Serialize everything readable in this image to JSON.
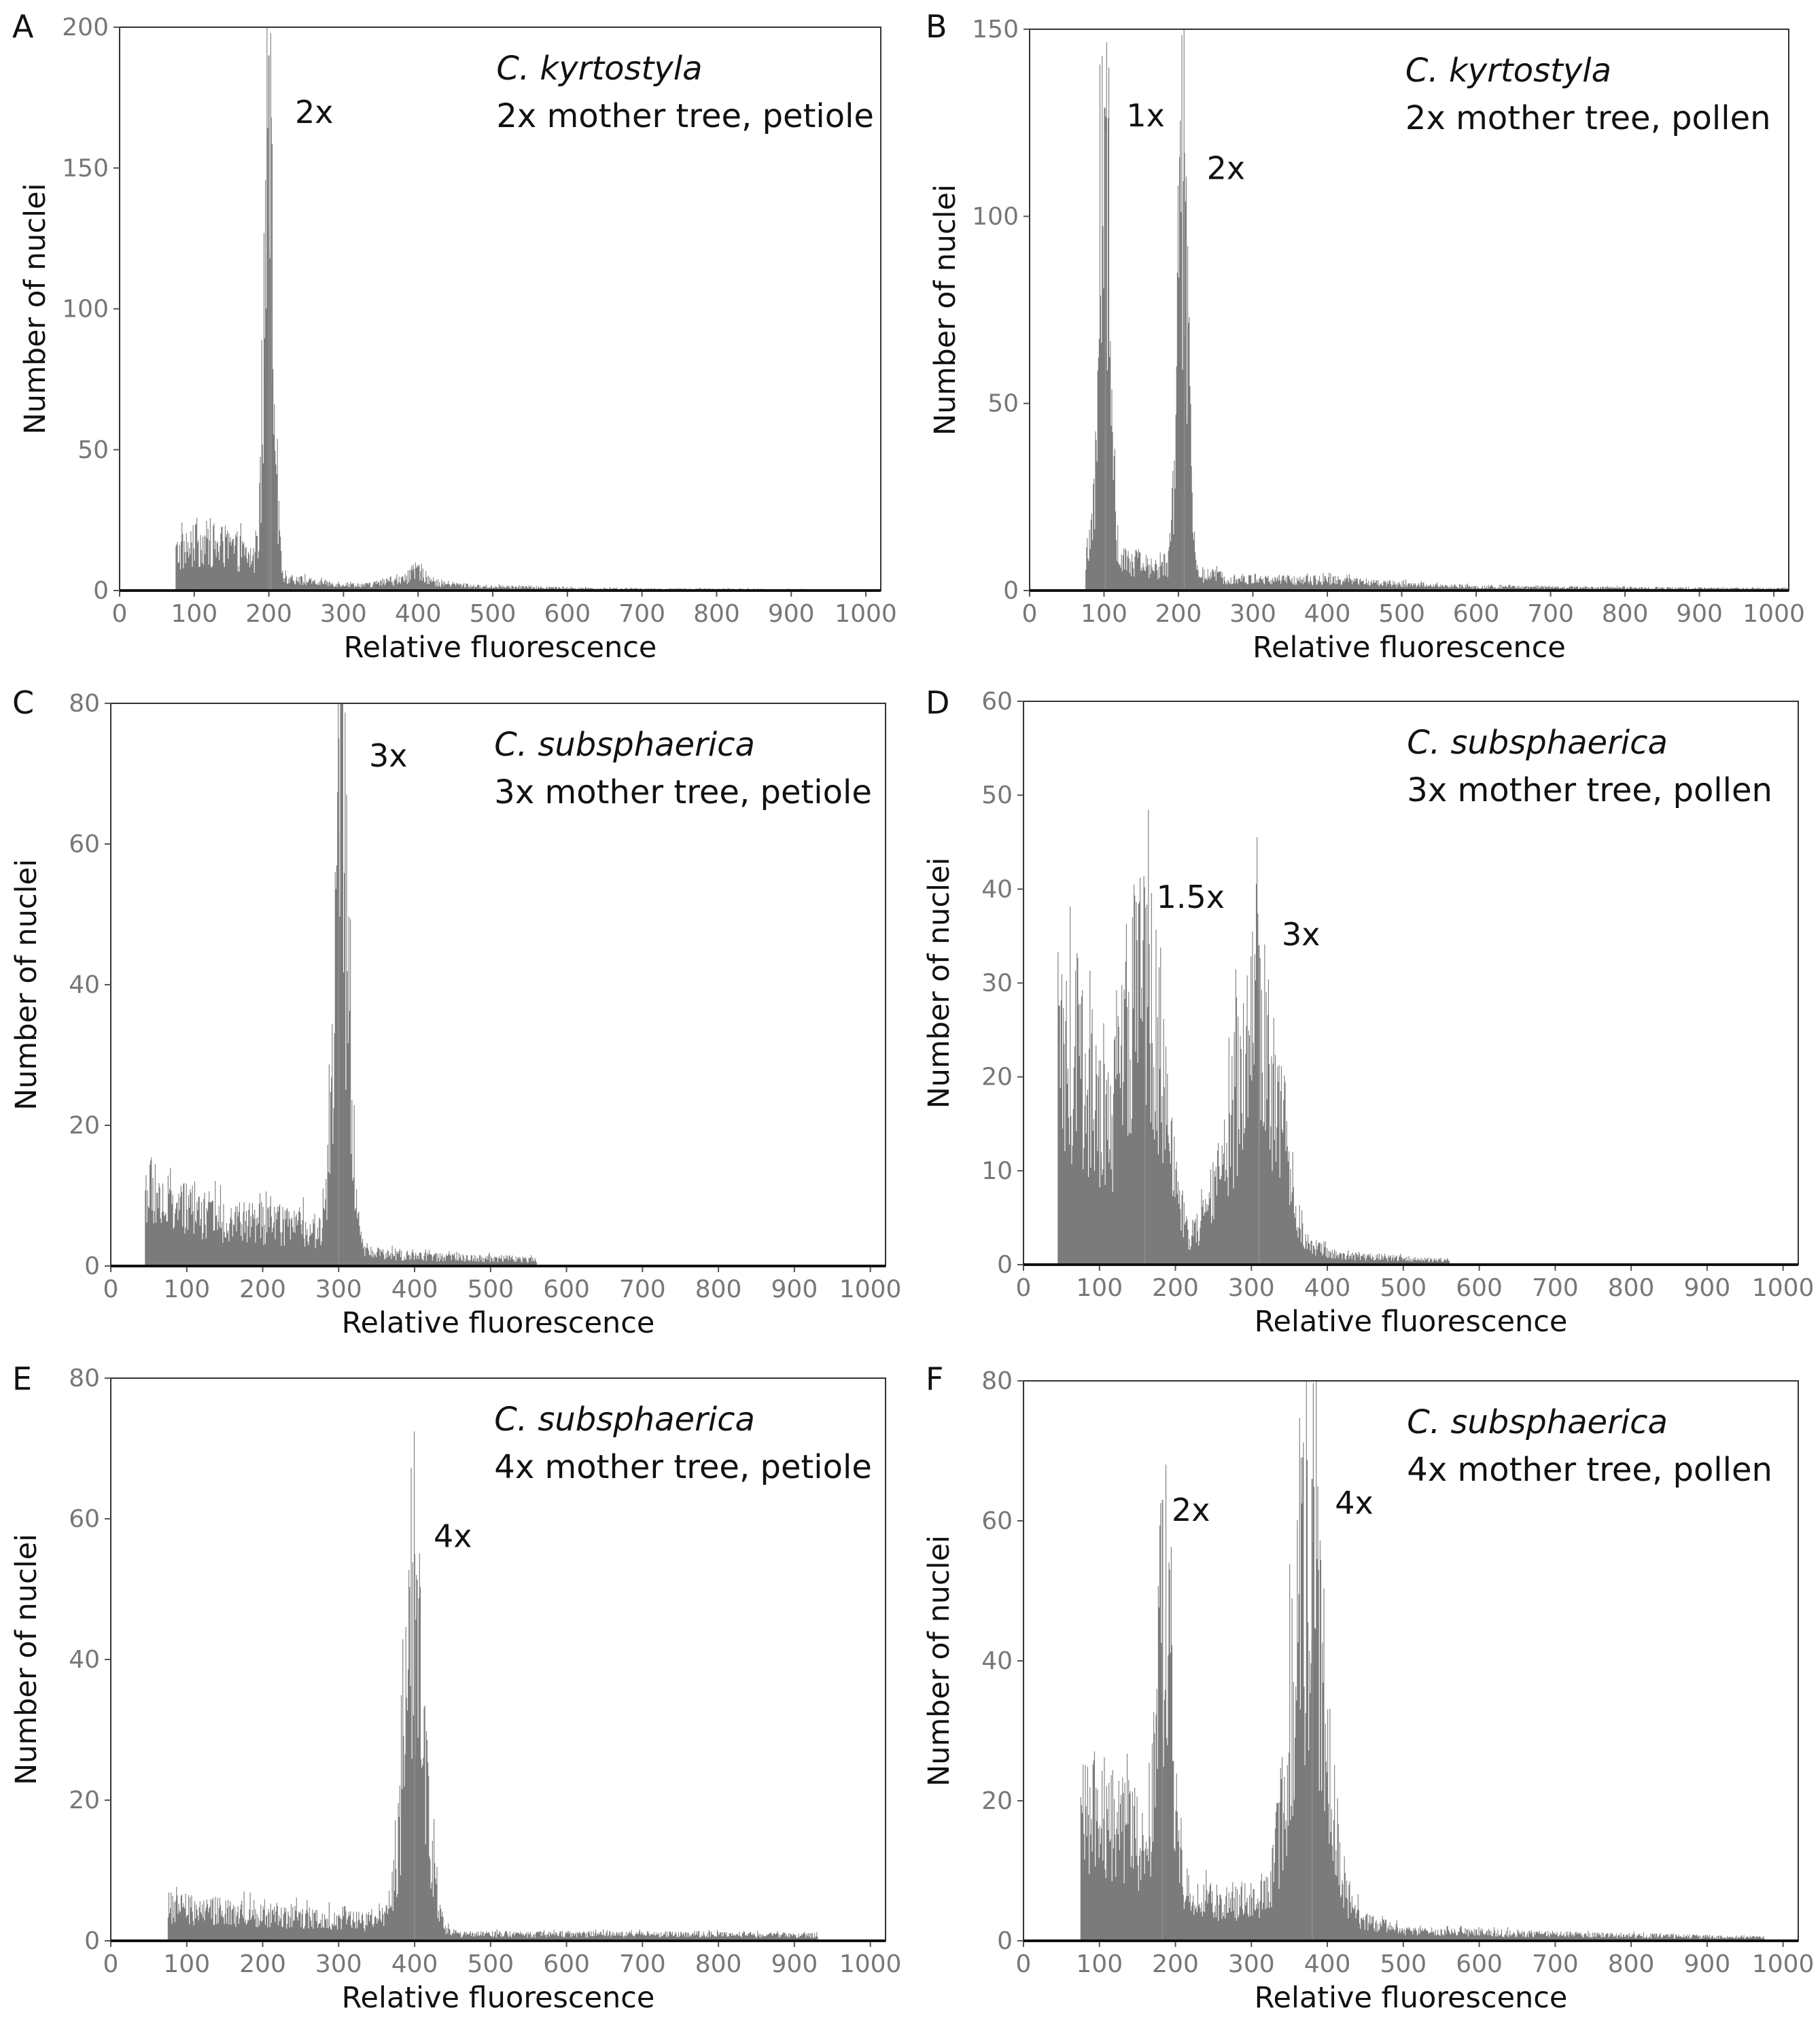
{
  "chart_data": [
    {
      "id": "A",
      "type": "bar",
      "panel_letter": "A",
      "species": "C. kyrtostyla",
      "description": "2x mother tree, petiole",
      "xlabel": "Relative fluorescence",
      "ylabel": "Number of nuclei",
      "xlim": [
        0,
        1020
      ],
      "ylim": [
        0,
        200
      ],
      "xticks": [
        0,
        100,
        200,
        300,
        400,
        500,
        600,
        700,
        800,
        900,
        1000
      ],
      "yticks": [
        0,
        50,
        100,
        150,
        200
      ],
      "x_start": 75,
      "x_end": 1000,
      "background": [
        [
          75,
          14
        ],
        [
          110,
          18
        ],
        [
          150,
          16
        ],
        [
          178,
          12
        ],
        [
          198,
          8
        ],
        [
          220,
          5
        ],
        [
          260,
          3
        ],
        [
          330,
          2
        ],
        [
          380,
          4
        ],
        [
          400,
          8
        ],
        [
          420,
          3
        ],
        [
          480,
          1.5
        ],
        [
          650,
          0.7
        ],
        [
          1000,
          0.3
        ]
      ],
      "peaks": [
        {
          "center": 200,
          "height": 175,
          "width": 6
        }
      ],
      "spikes": [
        [
          200,
          190
        ],
        [
          203,
          168
        ]
      ],
      "peak_labels": [
        {
          "text": "2x",
          "x": 235,
          "y": 166
        }
      ],
      "ylabel_vertical": true
    },
    {
      "id": "B",
      "type": "bar",
      "panel_letter": "B",
      "species": "C. kyrtostyla",
      "description": "2x mother tree, pollen",
      "xlabel": "Relative fluorescence",
      "ylabel": "Number of nuclei",
      "xlim": [
        0,
        1020
      ],
      "ylim": [
        0,
        150
      ],
      "xticks": [
        0,
        100,
        200,
        300,
        400,
        500,
        600,
        700,
        800,
        900,
        1000
      ],
      "yticks": [
        0,
        50,
        100,
        150
      ],
      "x_start": 75,
      "x_end": 1020,
      "background": [
        [
          75,
          10
        ],
        [
          130,
          8
        ],
        [
          180,
          6
        ],
        [
          250,
          4
        ],
        [
          300,
          3
        ],
        [
          400,
          3
        ],
        [
          480,
          2
        ],
        [
          600,
          1
        ],
        [
          1020,
          0.5
        ]
      ],
      "peaks": [
        {
          "center": 100,
          "height": 112,
          "width": 7
        },
        {
          "center": 205,
          "height": 110,
          "width": 7
        }
      ],
      "spikes": [
        [
          102,
          123
        ],
        [
          208,
          117
        ]
      ],
      "peak_labels": [
        {
          "text": "1x",
          "x": 130,
          "y": 124
        },
        {
          "text": "2x",
          "x": 238,
          "y": 110
        }
      ]
    },
    {
      "id": "C",
      "type": "bar",
      "panel_letter": "C",
      "species": "C. subsphaerica",
      "description": "3x mother tree, petiole",
      "xlabel": "Relative fluorescence",
      "ylabel": "Number of nuclei",
      "xlim": [
        0,
        1020
      ],
      "ylim": [
        0,
        80
      ],
      "xticks": [
        0,
        100,
        200,
        300,
        400,
        500,
        600,
        700,
        800,
        900,
        1000
      ],
      "yticks": [
        0,
        20,
        40,
        60,
        80
      ],
      "x_start": 45,
      "x_end": 560,
      "background": [
        [
          45,
          12
        ],
        [
          80,
          9
        ],
        [
          150,
          7
        ],
        [
          250,
          6
        ],
        [
          280,
          5
        ],
        [
          340,
          2
        ],
        [
          400,
          1.5
        ],
        [
          560,
          1
        ]
      ],
      "peaks": [
        {
          "center": 303,
          "height": 63,
          "width": 9
        }
      ],
      "spikes": [
        [
          300,
          75
        ]
      ],
      "peak_labels": [
        {
          "text": "3x",
          "x": 340,
          "y": 71
        }
      ]
    },
    {
      "id": "D",
      "type": "bar",
      "panel_letter": "D",
      "species": "C. subsphaerica",
      "description": "3x mother tree, pollen",
      "xlabel": "Relative fluorescence",
      "ylabel": "Number of nuclei",
      "xlim": [
        0,
        1020
      ],
      "ylim": [
        0,
        60
      ],
      "xticks": [
        0,
        100,
        200,
        300,
        400,
        500,
        600,
        700,
        800,
        900,
        1000
      ],
      "yticks": [
        0,
        10,
        20,
        30,
        40,
        50,
        60
      ],
      "x_start": 45,
      "x_end": 560,
      "background": [
        [
          45,
          22
        ],
        [
          70,
          24
        ],
        [
          100,
          15
        ],
        [
          130,
          12
        ],
        [
          220,
          2
        ],
        [
          240,
          5
        ],
        [
          270,
          4
        ],
        [
          360,
          2
        ],
        [
          420,
          1
        ],
        [
          560,
          0.5
        ]
      ],
      "peaks": [
        {
          "center": 160,
          "height": 25,
          "width": 22
        },
        {
          "center": 305,
          "height": 24,
          "width": 28
        }
      ],
      "spikes": [
        [
          160,
          38
        ],
        [
          310,
          34
        ]
      ],
      "peak_labels": [
        {
          "text": "1.5x",
          "x": 175,
          "y": 38
        },
        {
          "text": "3x",
          "x": 340,
          "y": 34
        }
      ]
    },
    {
      "id": "E",
      "type": "bar",
      "panel_letter": "E",
      "species": "C. subsphaerica",
      "description": "4x mother tree, petiole",
      "xlabel": "Relative fluorescence",
      "ylabel": "Number of nuclei",
      "xlim": [
        0,
        1020
      ],
      "ylim": [
        0,
        80
      ],
      "xticks": [
        0,
        100,
        200,
        300,
        400,
        500,
        600,
        700,
        800,
        900,
        1000
      ],
      "yticks": [
        0,
        20,
        40,
        60,
        80
      ],
      "x_start": 75,
      "x_end": 930,
      "background": [
        [
          75,
          5
        ],
        [
          200,
          4
        ],
        [
          330,
          3
        ],
        [
          360,
          3
        ],
        [
          460,
          1
        ],
        [
          600,
          1
        ],
        [
          800,
          1
        ],
        [
          930,
          0.8
        ]
      ],
      "peaks": [
        {
          "center": 400,
          "height": 44,
          "width": 14
        }
      ],
      "spikes": [
        [
          400,
          55
        ]
      ],
      "peak_labels": [
        {
          "text": "4x",
          "x": 425,
          "y": 56
        }
      ]
    },
    {
      "id": "F",
      "type": "bar",
      "panel_letter": "F",
      "species": "C. subsphaerica",
      "description": "4x mother tree, pollen",
      "xlabel": "Relative fluorescence",
      "ylabel": "Number of nuclei",
      "xlim": [
        0,
        1020
      ],
      "ylim": [
        0,
        80
      ],
      "xticks": [
        0,
        100,
        200,
        300,
        400,
        500,
        600,
        700,
        800,
        900,
        1000
      ],
      "yticks": [
        0,
        20,
        40,
        60,
        80
      ],
      "x_start": 75,
      "x_end": 975,
      "background": [
        [
          75,
          20
        ],
        [
          130,
          18
        ],
        [
          170,
          12
        ],
        [
          230,
          6
        ],
        [
          300,
          6
        ],
        [
          340,
          6
        ],
        [
          420,
          4
        ],
        [
          500,
          1.5
        ],
        [
          700,
          1
        ],
        [
          975,
          0.5
        ]
      ],
      "peaks": [
        {
          "center": 185,
          "height": 42,
          "width": 9
        },
        {
          "center": 375,
          "height": 50,
          "width": 22
        }
      ],
      "spikes": [
        [
          183,
          63
        ],
        [
          380,
          66
        ]
      ],
      "peak_labels": [
        {
          "text": "2x",
          "x": 195,
          "y": 60
        },
        {
          "text": "4x",
          "x": 410,
          "y": 61
        }
      ]
    }
  ]
}
